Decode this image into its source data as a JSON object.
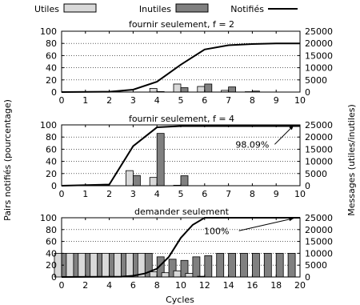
{
  "legend": [
    {
      "label": "Utiles",
      "kind": "bar",
      "color": "#d9d9d9"
    },
    {
      "label": "Inutiles",
      "kind": "bar",
      "color": "#808080"
    },
    {
      "label": "Notifiés",
      "kind": "line",
      "color": "#000000"
    }
  ],
  "axes": {
    "left_label": "Pairs notifiés (pourcentage)",
    "right_label": "Messages (utiles/inutiles)",
    "x_label": "Cycles"
  },
  "chart_data": [
    {
      "type": "bar+line",
      "title": "fournir seulement, f = 2",
      "xlim": [
        0,
        10
      ],
      "x_ticks": [
        "0",
        "1",
        "2",
        "3",
        "4",
        "5",
        "6",
        "7",
        "8",
        "9",
        "10"
      ],
      "y_left_lim": [
        0,
        100
      ],
      "y_left_ticks": [
        "0",
        "20",
        "40",
        "60",
        "80",
        "100"
      ],
      "y_right_lim": [
        0,
        25000
      ],
      "y_right_ticks": [
        "0",
        "5000",
        "10000",
        "15000",
        "20000",
        "25000"
      ],
      "grid": true,
      "notified_line": {
        "name": "Notifiés",
        "x": [
          0,
          2,
          3,
          4,
          5,
          6,
          7,
          8,
          9,
          10
        ],
        "y": [
          0,
          0.5,
          4,
          17,
          45,
          70,
          77,
          79,
          80,
          80
        ]
      },
      "bars": [
        {
          "x": 4,
          "useful": 1500,
          "useless": 200
        },
        {
          "x": 5,
          "useful": 3300,
          "useless": 1800
        },
        {
          "x": 6,
          "useful": 2300,
          "useless": 3300
        },
        {
          "x": 7,
          "useful": 700,
          "useless": 2100
        },
        {
          "x": 8,
          "useful": 150,
          "useless": 400
        }
      ],
      "annotation": null
    },
    {
      "type": "bar+line",
      "title": "fournir seulement, f = 4",
      "xlim": [
        0,
        10
      ],
      "x_ticks": [
        "0",
        "1",
        "2",
        "3",
        "4",
        "5",
        "6",
        "7",
        "8",
        "9",
        "10"
      ],
      "y_left_lim": [
        0,
        100
      ],
      "y_left_ticks": [
        "0",
        "20",
        "40",
        "60",
        "80",
        "100"
      ],
      "y_right_lim": [
        0,
        25000
      ],
      "y_right_ticks": [
        "0",
        "5000",
        "10000",
        "15000",
        "20000",
        "25000"
      ],
      "grid": true,
      "notified_line": {
        "name": "Notifiés",
        "x": [
          0,
          2,
          3,
          4,
          5,
          6,
          7,
          8,
          9,
          10
        ],
        "y": [
          0,
          2,
          65,
          96,
          98,
          98,
          98,
          98,
          98,
          98
        ]
      },
      "bars": [
        {
          "x": 3,
          "useful": 6200,
          "useless": 4200
        },
        {
          "x": 4,
          "useful": 3400,
          "useless": 21500
        },
        {
          "x": 5,
          "useful": 200,
          "useless": 4100
        }
      ],
      "annotation": {
        "text": "98.09%",
        "x": 8.0,
        "y": 68
      }
    },
    {
      "type": "bar+line",
      "title": "demander seulement",
      "xlim": [
        0,
        20
      ],
      "x_ticks": [
        "0",
        "2",
        "4",
        "6",
        "8",
        "10",
        "12",
        "14",
        "16",
        "18",
        "20"
      ],
      "y_left_lim": [
        0,
        100
      ],
      "y_left_ticks": [
        "0",
        "20",
        "40",
        "60",
        "80",
        "100"
      ],
      "y_right_lim": [
        0,
        25000
      ],
      "y_right_ticks": [
        "0",
        "5000",
        "10000",
        "15000",
        "20000",
        "25000"
      ],
      "grid": true,
      "notified_line": {
        "name": "Notifiés",
        "x": [
          0,
          5,
          6,
          7,
          8,
          9,
          10,
          11,
          12,
          13,
          20
        ],
        "y": [
          0,
          0.5,
          2,
          6,
          14,
          34,
          66,
          88,
          100,
          100,
          100
        ]
      },
      "bars": [
        {
          "x": 0,
          "useful": 10000,
          "useless": 10000
        },
        {
          "x": 1,
          "useful": 10000,
          "useless": 10000
        },
        {
          "x": 2,
          "useful": 10000,
          "useless": 10000
        },
        {
          "x": 3,
          "useful": 10000,
          "useless": 10000
        },
        {
          "x": 4,
          "useful": 10000,
          "useless": 10000
        },
        {
          "x": 5,
          "useful": 10000,
          "useless": 10000
        },
        {
          "x": 6,
          "useful": 10000,
          "useless": 10000
        },
        {
          "x": 7,
          "useful": 10000,
          "useless": 10000
        },
        {
          "x": 8,
          "useful": 2200,
          "useless": 8500
        },
        {
          "x": 9,
          "useful": 1800,
          "useless": 7500
        },
        {
          "x": 10,
          "useful": 2600,
          "useless": 7000
        },
        {
          "x": 11,
          "useful": 1500,
          "useless": 8500
        },
        {
          "x": 12,
          "useful": 300,
          "useless": 9000
        },
        {
          "x": 13,
          "useful": 0,
          "useless": 10000
        },
        {
          "x": 14,
          "useful": 0,
          "useless": 10000
        },
        {
          "x": 15,
          "useful": 0,
          "useless": 10000
        },
        {
          "x": 16,
          "useful": 0,
          "useless": 10000
        },
        {
          "x": 17,
          "useful": 0,
          "useless": 10000
        },
        {
          "x": 18,
          "useful": 0,
          "useless": 10000
        },
        {
          "x": 19,
          "useful": 0,
          "useless": 10000
        }
      ],
      "annotation": {
        "text": "100%",
        "x": 13.0,
        "y": 78
      }
    }
  ]
}
